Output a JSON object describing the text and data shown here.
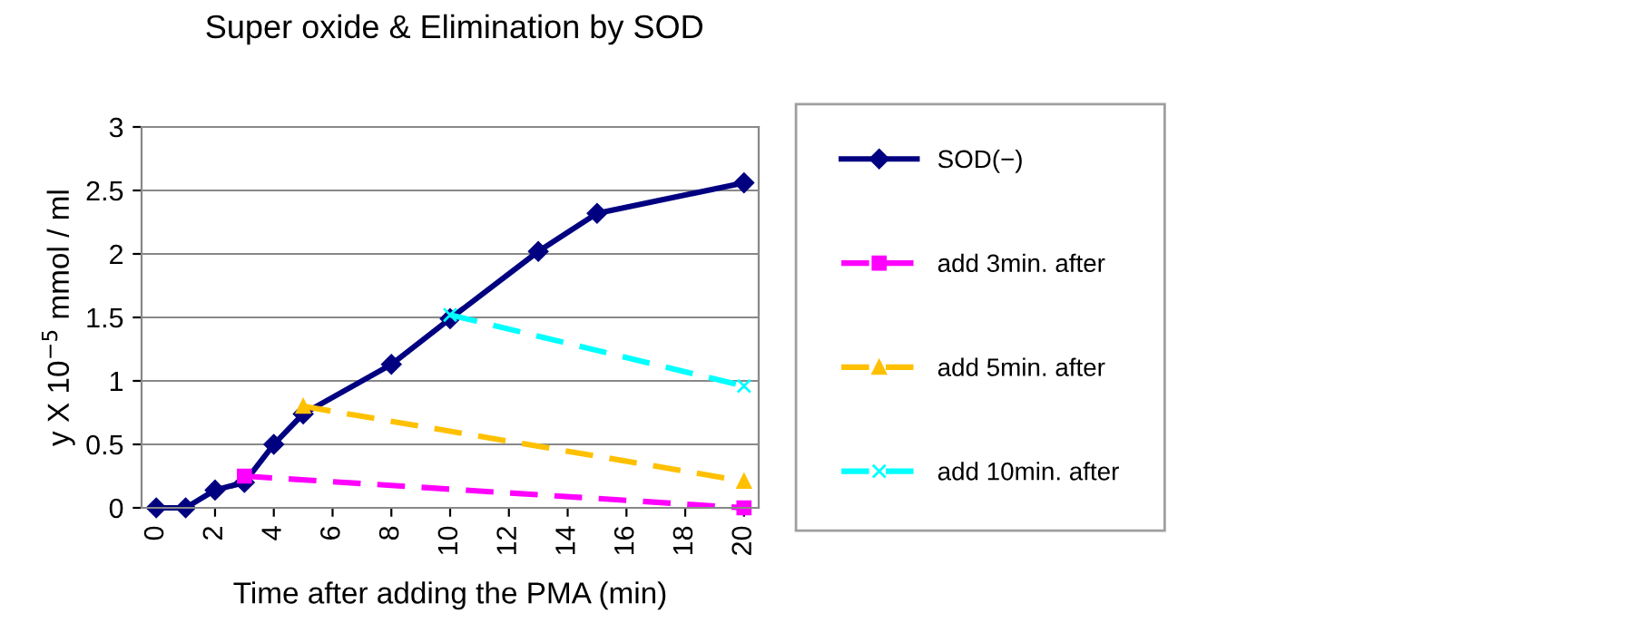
{
  "chart_data": {
    "type": "line",
    "title": "Super oxide & Elimination by SOD",
    "xlabel": "Time after adding the PMA (min)",
    "ylabel": "y X 10$^{−5}$ mmol / ml",
    "xlim": [
      -0.5,
      20.5
    ],
    "xticks": [
      0,
      2,
      4,
      6,
      8,
      10,
      12,
      14,
      16,
      18,
      20
    ],
    "ylim": [
      0,
      3
    ],
    "yticks": [
      0,
      0.5,
      1,
      1.5,
      2,
      2.5,
      3
    ],
    "grid": "y",
    "legend": "right",
    "series": [
      {
        "name": "SOD(−)",
        "color": "#000080",
        "x": [
          0,
          1,
          2,
          3,
          4,
          5,
          8,
          10,
          13,
          15,
          20
        ],
        "values": [
          0,
          0,
          0.14,
          0.2,
          0.5,
          0.74,
          1.13,
          1.49,
          2.02,
          2.32,
          2.56
        ],
        "marker": "diamond",
        "line_style": "solid"
      },
      {
        "name": "add 3min. after",
        "color": "#ff00ff",
        "x": [
          3,
          20
        ],
        "values": [
          0.25,
          0
        ],
        "marker": "square",
        "line_style": "dashed"
      },
      {
        "name": "add 5min. after",
        "color": "#ffc000",
        "x": [
          5,
          20
        ],
        "values": [
          0.8,
          0.21
        ],
        "marker": "triangle",
        "line_style": "dashed"
      },
      {
        "name": "add 10min. after",
        "color": "#00ffff",
        "x": [
          10,
          20
        ],
        "values": [
          1.52,
          0.96
        ],
        "marker": "cross",
        "line_style": "dashed"
      }
    ]
  }
}
